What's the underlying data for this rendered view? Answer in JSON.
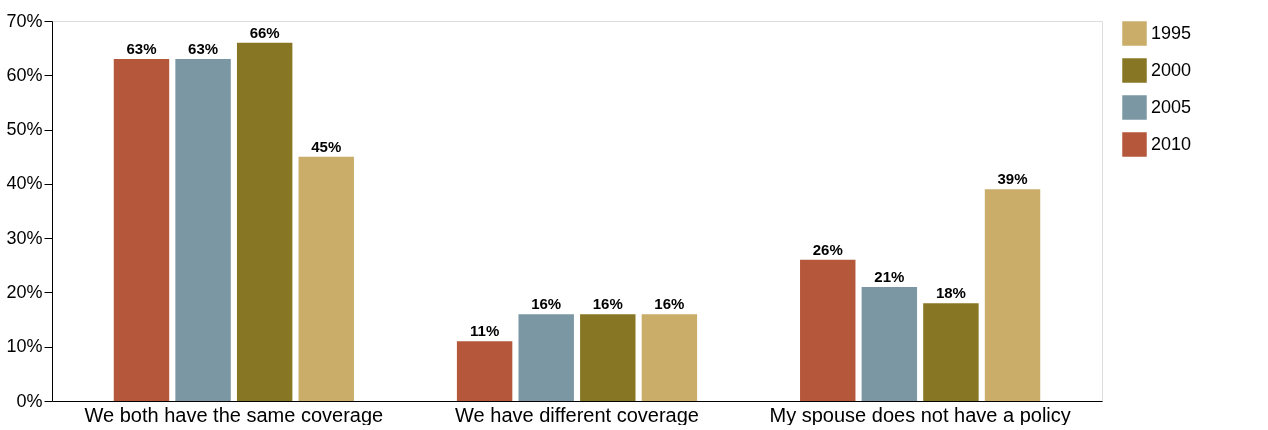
{
  "chart_data": {
    "type": "bar",
    "categories": [
      "We both have the same coverage",
      "We have different coverage",
      "My spouse does not have a policy"
    ],
    "series": [
      {
        "name": "2010",
        "color": "#b5573a",
        "values": [
          63,
          11,
          26
        ],
        "value_labels": [
          "63%",
          "11%",
          "26%"
        ]
      },
      {
        "name": "2005",
        "color": "#7a97a3",
        "values": [
          63,
          16,
          21
        ],
        "value_labels": [
          "63%",
          "16%",
          "21%"
        ]
      },
      {
        "name": "2000",
        "color": "#877623",
        "values": [
          66,
          16,
          18
        ],
        "value_labels": [
          "66%",
          "16%",
          "18%"
        ]
      },
      {
        "name": "1995",
        "color": "#c9ad69",
        "values": [
          45,
          16,
          39
        ],
        "value_labels": [
          "45%",
          "16%",
          "39%"
        ]
      }
    ],
    "ylim": [
      0,
      70
    ],
    "yticks": [
      {
        "value": 0,
        "label": "0%"
      },
      {
        "value": 10,
        "label": "10%"
      },
      {
        "value": 20,
        "label": "20%"
      },
      {
        "value": 30,
        "label": "30%"
      },
      {
        "value": 40,
        "label": "40%"
      },
      {
        "value": 50,
        "label": "50%"
      },
      {
        "value": 60,
        "label": "60%"
      },
      {
        "value": 70,
        "label": "70%"
      }
    ],
    "grid": false,
    "legend": "right"
  }
}
